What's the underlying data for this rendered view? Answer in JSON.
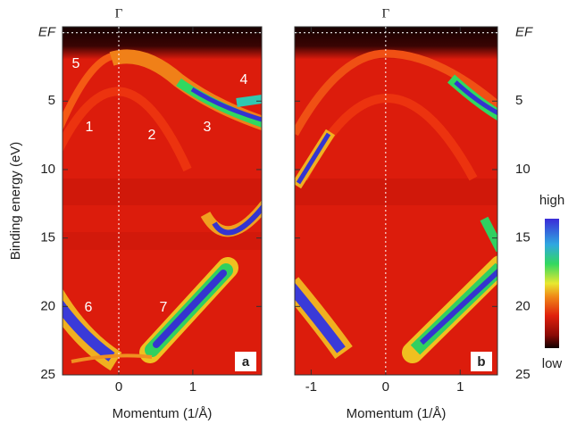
{
  "chart_data": [
    {
      "type": "heatmap",
      "panel_label": "a",
      "top_label": "Γ",
      "x_label": "Momentum (1/Å)",
      "y_label": "Binding energy (eV)",
      "xlim": [
        -0.76,
        1.93
      ],
      "ylim": [
        25,
        -0.43
      ],
      "xticks": [
        0,
        1
      ],
      "yticks": [
        {
          "value": 0,
          "label": "EF"
        },
        5,
        10,
        15,
        20,
        25
      ],
      "annotations": [
        "5",
        "4",
        "1",
        "2",
        "3",
        "6",
        "7"
      ]
    },
    {
      "type": "heatmap",
      "panel_label": "b",
      "top_label": "Γ",
      "x_label": "Momentum (1/Å)",
      "xlim": [
        -1.22,
        1.5
      ],
      "ylim": [
        25,
        -0.43
      ],
      "xticks": [
        -1,
        0,
        1
      ],
      "yticks": [
        {
          "value": 0,
          "label": "EF"
        },
        5,
        10,
        15,
        20,
        25
      ],
      "colorbar_labels": [
        "high",
        "low"
      ]
    }
  ]
}
